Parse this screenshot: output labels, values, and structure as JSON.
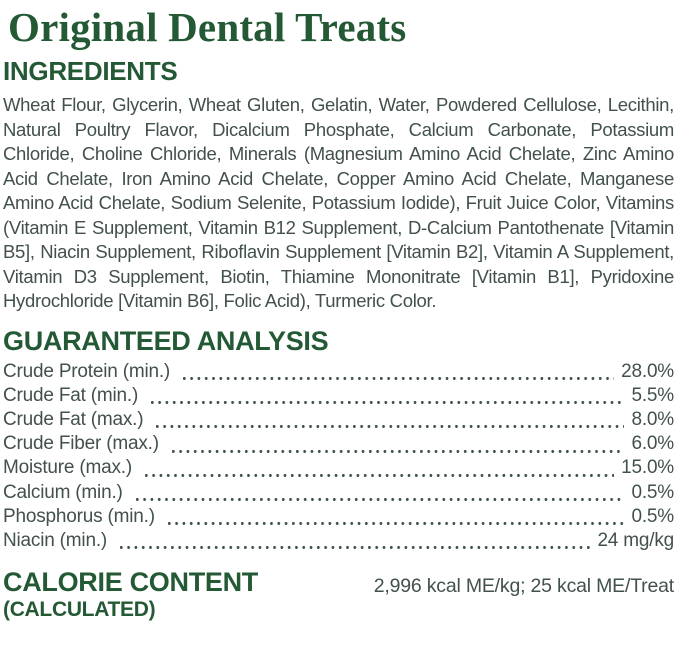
{
  "title": "Original Dental Treats",
  "ingredients": {
    "heading": "INGREDIENTS",
    "text": "Wheat Flour, Glycerin, Wheat Gluten, Gelatin, Water, Powdered Cellulose, Lecithin, Natural Poultry Flavor, Dicalcium Phosphate, Calcium Carbonate, Potassium Chloride, Choline Chloride, Minerals (Magnesium Amino Acid Chelate, Zinc Amino Acid Chelate, Iron Amino Acid Chelate, Copper Amino Acid Chelate, Manganese Amino Acid Chelate, Sodium Selenite, Potassium Iodide), Fruit Juice Color, Vitamins (Vitamin E Supplement, Vitamin B12 Supplement, D-Calcium Pantothenate [Vitamin B5], Niacin Supplement, Riboflavin Supplement [Vitamin B2], Vitamin A Supplement, Vitamin D3 Supplement, Biotin, Thiamine Mononitrate [Vitamin B1], Pyridoxine Hydrochloride [Vitamin B6], Folic Acid), Turmeric Color."
  },
  "guaranteed_analysis": {
    "heading": "GUARANTEED ANALYSIS",
    "rows": [
      {
        "label": "Crude Protein (min.)",
        "value": "28.0%"
      },
      {
        "label": "Crude Fat (min.)",
        "value": "5.5%"
      },
      {
        "label": "Crude Fat (max.)",
        "value": "8.0%"
      },
      {
        "label": "Crude Fiber (max.)",
        "value": "6.0%"
      },
      {
        "label": "Moisture (max.)",
        "value": "15.0%"
      },
      {
        "label": "Calcium (min.)",
        "value": "0.5%"
      },
      {
        "label": "Phosphorus (min.)",
        "value": "0.5%"
      },
      {
        "label": "Niacin (min.)",
        "value": "24 mg/kg"
      }
    ]
  },
  "calorie_content": {
    "heading": "CALORIE CONTENT",
    "subheading": "(CALCULATED)",
    "value": "2,996 kcal ME/kg; 25 kcal ME/Treat"
  },
  "colors": {
    "heading_green": "#245935",
    "body_text": "#42514a"
  }
}
